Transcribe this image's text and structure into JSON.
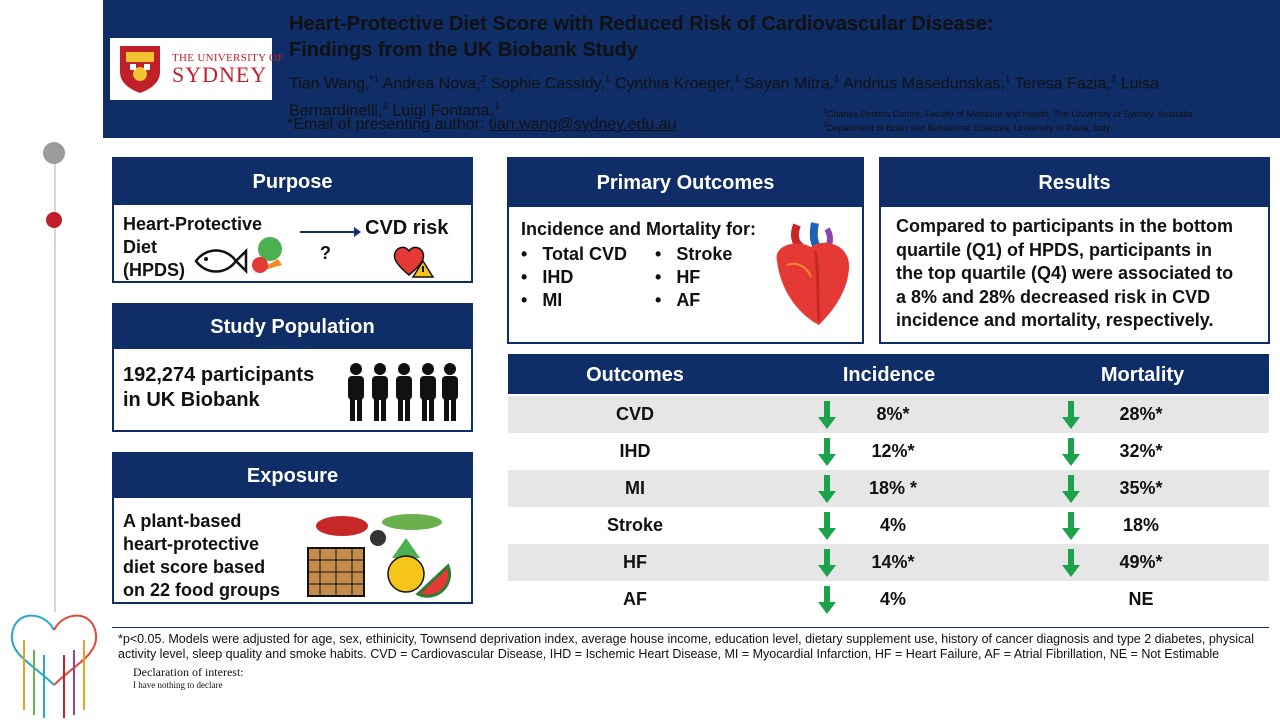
{
  "header": {
    "title_line1": "Heart-Protective Diet Score with Reduced Risk of Cardiovascular Disease:",
    "title_line2": "Findings from the UK Biobank Study",
    "authors": [
      {
        "name": "Tian Wang,",
        "sup": "*1"
      },
      {
        "name": " Andrea Nova,",
        "sup": "2"
      },
      {
        "name": " Sophie Cassidy,",
        "sup": "1"
      },
      {
        "name": " Cynthia Kroeger,",
        "sup": "1"
      },
      {
        "name": " Sayan Mitra,",
        "sup": "1"
      },
      {
        "name": " Andrius Masedunskas,",
        "sup": "1"
      },
      {
        "name": " Teresa Fazia,",
        "sup": "2"
      },
      {
        "name": " Luisa Bernardinelli,",
        "sup": "2"
      },
      {
        "name": " Luigi Fontana,",
        "sup": "1"
      }
    ],
    "email_prefix": "*Email of presenting author: ",
    "email": "tian.wang@sydney.edu.au",
    "affiliation1_sup": "1",
    "affiliation1": "Charles Perkins Centre, Faculty of Medicine and Health, The University of Sydney, Australia",
    "affiliation2_sup": "2",
    "affiliation2": "Department of Brain and Behavioral Sciences, University of Pavia, Italy"
  },
  "logo": {
    "small": "THE UNIVERSITY OF",
    "big": "SYDNEY"
  },
  "purpose": {
    "title": "Purpose",
    "line1": "Heart-Protective",
    "line2": "Diet",
    "line3": "(HPDS)",
    "question": "?",
    "target": "CVD risk"
  },
  "study": {
    "title": "Study Population",
    "line1": "192,274 participants",
    "line2": "in UK Biobank"
  },
  "exposure": {
    "title": "Exposure",
    "lines": [
      "A plant-based",
      "heart-protective",
      "diet score based",
      "on 22 food groups"
    ]
  },
  "primary": {
    "title": "Primary Outcomes",
    "lead": "Incidence and Mortality for:",
    "col1": [
      "Total CVD",
      "IHD",
      "MI"
    ],
    "col2": [
      "Stroke",
      "HF",
      "AF"
    ]
  },
  "results": {
    "title": "Results",
    "lines": [
      "Compared to participants in the bottom",
      "quartile (Q1) of HPDS, participants in",
      "the top quartile (Q4) were associated to",
      "a 8% and 28% decreased risk in CVD",
      "incidence and mortality, respectively."
    ]
  },
  "table": {
    "headers": [
      "Outcomes",
      "Incidence",
      "Mortality"
    ],
    "rows": [
      {
        "outcome": "CVD",
        "incidence": "8%*",
        "mortality": "28%*",
        "inc_arrow": true,
        "mor_arrow": true
      },
      {
        "outcome": "IHD",
        "incidence": "12%*",
        "mortality": "32%*",
        "inc_arrow": true,
        "mor_arrow": true
      },
      {
        "outcome": "MI",
        "incidence": "18% *",
        "mortality": "35%*",
        "inc_arrow": true,
        "mor_arrow": true
      },
      {
        "outcome": "Stroke",
        "incidence": "4%",
        "mortality": "18%",
        "inc_arrow": true,
        "mor_arrow": true
      },
      {
        "outcome": "HF",
        "incidence": "14%*",
        "mortality": "49%*",
        "inc_arrow": true,
        "mor_arrow": true
      },
      {
        "outcome": "AF",
        "incidence": "4%",
        "mortality": "NE",
        "inc_arrow": true,
        "mor_arrow": false
      }
    ],
    "arrow_color": "#1aa34a"
  },
  "footnote": "*p<0.05. Models were adjusted for age, sex, ethinicity, Townsend deprivation index, average house income, education level, dietary supplement use, history of cancer diagnosis and type 2 diabetes, physical activity level, sleep quality and smoke habits. CVD = Cardiovascular Disease, IHD = Ischemic Heart Disease, MI = Myocardial Infarction, HF = Heart Failure, AF = Atrial Fibrillation, NE = Not Estimable",
  "declaration": {
    "title": "Declaration of interest:",
    "text": "I have nothing to declare"
  },
  "colors": {
    "navy": "#0f2d67",
    "accent_red": "#c0202a",
    "arrow_green": "#1aa34a",
    "row_shade": "#e6e6e6"
  }
}
